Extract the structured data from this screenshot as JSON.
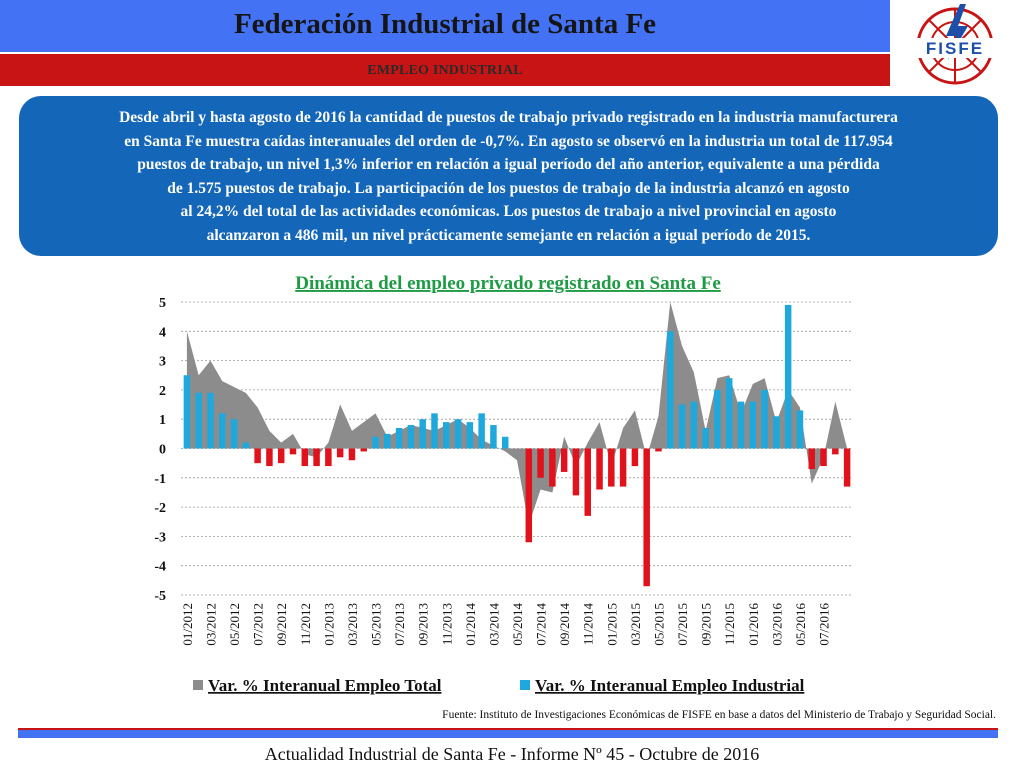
{
  "header": {
    "title": "Federación Industrial de Santa Fe",
    "subtitle": "EMPLEO INDUSTRIAL",
    "logo_text": "FISFE"
  },
  "summary": {
    "lines": [
      "Desde abril y hasta agosto de 2016 la cantidad de puestos de trabajo privado registrado en la industria manufacturera",
      "en Santa Fe muestra caídas interanuales del orden de -0,7%. En agosto se observó en la industria un total de 117.954",
      "puestos de trabajo, un nivel 1,3% inferior en relación a igual período del año anterior, equivalente a una pérdida",
      "de 1.575 puestos de trabajo. La participación de los puestos de trabajo de la industria alcanzó en agosto",
      "al 24,2% del total de las actividades económicas. Los puestos de trabajo a nivel provincial en agosto",
      "alcanzaron a 486 mil, un nivel prácticamente semejante en relación a igual período de 2015."
    ]
  },
  "chart_data": {
    "type": "bar",
    "title": "Dinámica del empleo privado registrado en Santa Fe",
    "ylim": [
      -5,
      5
    ],
    "yticks": [
      5,
      4,
      3,
      2,
      1,
      0,
      -1,
      -2,
      -3,
      -4,
      -5
    ],
    "xtick_labels": [
      "01/2012",
      "03/2012",
      "05/2012",
      "07/2012",
      "09/2012",
      "11/2012",
      "01/2013",
      "03/2013",
      "05/2013",
      "07/2013",
      "09/2013",
      "11/2013",
      "01/2014",
      "03/2014",
      "05/2014",
      "07/2014",
      "09/2014",
      "11/2014",
      "01/2015",
      "03/2015",
      "05/2015",
      "07/2015",
      "09/2015",
      "11/2015",
      "01/2016",
      "03/2016",
      "05/2016",
      "07/2016"
    ],
    "grid": true,
    "legend_position": "bottom",
    "series": [
      {
        "name": "Var. % Interanual Empleo Total",
        "kind": "area",
        "color": "#8c8c8c",
        "values": [
          4.0,
          2.5,
          3.0,
          2.3,
          2.1,
          1.9,
          1.4,
          0.6,
          0.2,
          0.5,
          -0.2,
          -0.3,
          0.2,
          1.5,
          0.6,
          0.9,
          1.2,
          0.4,
          0.6,
          0.8,
          0.7,
          0.6,
          0.8,
          1.0,
          0.7,
          0.3,
          0.1,
          -0.1,
          -0.4,
          -2.6,
          -1.4,
          -1.5,
          0.4,
          -0.6,
          0.2,
          0.9,
          -0.6,
          0.7,
          1.3,
          -0.3,
          1.1,
          5.0,
          3.5,
          2.6,
          0.6,
          2.4,
          2.5,
          1.2,
          2.2,
          2.4,
          0.9,
          2.0,
          1.4,
          -1.2,
          -0.3,
          1.6,
          0.0
        ]
      },
      {
        "name": "Var. % Interanual Empleo Industrial",
        "kind": "bar",
        "color_positive": "#1ea8dc",
        "color_negative": "#e0121c",
        "values": [
          2.5,
          1.9,
          1.9,
          1.2,
          1.0,
          0.2,
          -0.5,
          -0.6,
          -0.5,
          -0.2,
          -0.6,
          -0.6,
          -0.6,
          -0.3,
          -0.4,
          -0.1,
          0.4,
          0.5,
          0.7,
          0.8,
          1.0,
          1.2,
          0.9,
          1.0,
          0.9,
          1.2,
          0.8,
          0.4,
          0.0,
          -3.2,
          -1.0,
          -1.3,
          -0.8,
          -1.6,
          -2.3,
          -1.4,
          -1.3,
          -1.3,
          -0.6,
          -4.7,
          -0.1,
          4.0,
          1.5,
          1.6,
          0.7,
          2.0,
          2.4,
          1.6,
          1.6,
          2.0,
          1.1,
          4.9,
          1.3,
          -0.7,
          -0.6,
          -0.2,
          -1.3
        ]
      }
    ]
  },
  "source": "Fuente: Instituto de Investigaciones Económicas de  FISFE en base a datos del Ministerio de Trabajo y Seguridad Social.",
  "footer": "Actualidad Industrial de Santa Fe - Informe Nº 45 - Octubre de 2016"
}
